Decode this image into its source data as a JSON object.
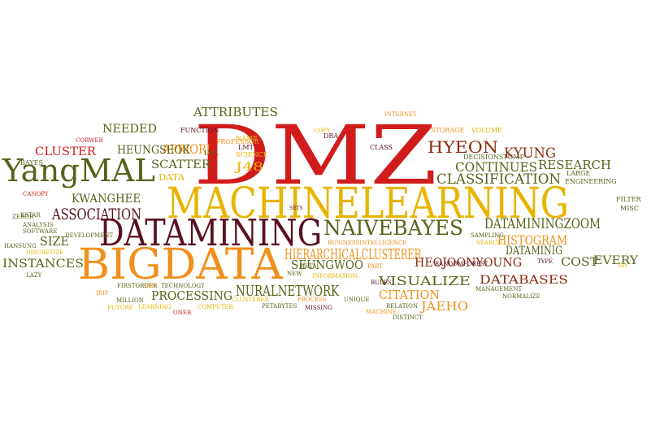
{
  "palette": {
    "red": "#d11c1c",
    "gold": "#e8b400",
    "orange": "#f0901a",
    "olive": "#58621a",
    "dark": "#5a1020",
    "brown": "#8b2a10",
    "tan": "#d2a84a"
  },
  "words": [
    {
      "text": "DMZ",
      "color": "red"
    },
    {
      "text": "MACHINELEARNING",
      "color": "gold"
    },
    {
      "text": "DATAMINING",
      "color": "dark"
    },
    {
      "text": "BIGDATA",
      "color": "orange"
    },
    {
      "text": "YangMAL",
      "color": "olive"
    },
    {
      "text": "NAIVEBAYES",
      "color": "olive"
    },
    {
      "text": "ASSOCIATION",
      "color": "dark"
    },
    {
      "text": "HIERARCHICALCLUSTERER",
      "color": "orange"
    },
    {
      "text": "NURALNETWORK",
      "color": "olive"
    },
    {
      "text": "DATAMININGZOOM",
      "color": "olive"
    },
    {
      "text": "CLASSIFICATION",
      "color": "olive"
    },
    {
      "text": "APRIORI",
      "color": "orange"
    },
    {
      "text": "ATTRIBUTES",
      "color": "olive"
    },
    {
      "text": "NEEDED",
      "color": "olive"
    },
    {
      "text": "CLUSTER",
      "color": "red"
    },
    {
      "text": "HEUNGSEOK",
      "color": "olive"
    },
    {
      "text": "SCATTER",
      "color": "olive"
    },
    {
      "text": "KWANGHEE",
      "color": "olive"
    },
    {
      "text": "SIZE",
      "color": "olive"
    },
    {
      "text": "INSTANCES",
      "color": "olive"
    },
    {
      "text": "HYEON",
      "color": "brown"
    },
    {
      "text": "KYUNG",
      "color": "brown"
    },
    {
      "text": "CONTINUES",
      "color": "olive"
    },
    {
      "text": "RESEARCH",
      "color": "olive"
    },
    {
      "text": "HISTOGRAM",
      "color": "orange"
    },
    {
      "text": "EVERY",
      "color": "olive"
    },
    {
      "text": "DATAMINIG",
      "color": "olive"
    },
    {
      "text": "SEUNGWOO",
      "color": "olive"
    },
    {
      "text": "HEOJOONYOUNG",
      "color": "brown"
    },
    {
      "text": "COST",
      "color": "olive"
    },
    {
      "text": "VISUALIZE",
      "color": "olive"
    },
    {
      "text": "DATABASES",
      "color": "brown"
    },
    {
      "text": "PROCESSING",
      "color": "olive"
    },
    {
      "text": "CITATION",
      "color": "orange"
    },
    {
      "text": "JAEHO",
      "color": "orange"
    },
    {
      "text": "J48",
      "color": "gold"
    },
    {
      "text": "DATA",
      "color": "gold"
    },
    {
      "text": "FUNCTION",
      "color": "dark"
    },
    {
      "text": "PROFESSOR",
      "color": "orange"
    },
    {
      "text": "LWL",
      "color": "olive"
    },
    {
      "text": "LMT",
      "color": "dark"
    },
    {
      "text": "SCIENCE",
      "color": "gold"
    },
    {
      "text": "NAME",
      "color": "gold"
    },
    {
      "text": "DBA",
      "color": "dark"
    },
    {
      "text": "COPY",
      "color": "gold"
    },
    {
      "text": "CLASS",
      "color": "dark"
    },
    {
      "text": "INTERNET",
      "color": "orange"
    },
    {
      "text": "STORAGE",
      "color": "orange"
    },
    {
      "text": "VOLUME",
      "color": "gold"
    },
    {
      "text": "DECISIONSTUMP",
      "color": "olive"
    },
    {
      "text": "COBWEB",
      "color": "red"
    },
    {
      "text": "BAYES",
      "color": "olive"
    },
    {
      "text": "MISC",
      "color": "olive"
    },
    {
      "text": "FILTER",
      "color": "olive"
    },
    {
      "text": "LARGE",
      "color": "olive"
    },
    {
      "text": "ENGINEERING",
      "color": "olive"
    },
    {
      "text": "SETS",
      "color": "dark"
    },
    {
      "text": "CANOPY",
      "color": "red"
    },
    {
      "text": "ZEROR",
      "color": "olive"
    },
    {
      "text": "KSTAR",
      "color": "olive"
    },
    {
      "text": "ANALYSIS",
      "color": "olive"
    },
    {
      "text": "SOFTWARE",
      "color": "olive"
    },
    {
      "text": "DEVELOPMENT",
      "color": "olive"
    },
    {
      "text": "HANSUNG",
      "color": "olive"
    },
    {
      "text": "DISCRETIZE",
      "color": "gold"
    },
    {
      "text": "LAZY",
      "color": "olive"
    },
    {
      "text": "FIRSTORDER",
      "color": "olive"
    },
    {
      "text": "SAN",
      "color": "orange"
    },
    {
      "text": "TECHNOLOGY",
      "color": "olive"
    },
    {
      "text": "JRIP",
      "color": "orange"
    },
    {
      "text": "MILLION",
      "color": "olive"
    },
    {
      "text": "FUTURE",
      "color": "gold"
    },
    {
      "text": "LEARNING",
      "color": "gold"
    },
    {
      "text": "COMPUTER",
      "color": "gold"
    },
    {
      "text": "ONER",
      "color": "red"
    },
    {
      "text": "CLUSTERER",
      "color": "gold"
    },
    {
      "text": "PETABYTES",
      "color": "olive"
    },
    {
      "text": "MISSING",
      "color": "dark"
    },
    {
      "text": "NEW",
      "color": "olive"
    },
    {
      "text": "META",
      "color": "olive"
    },
    {
      "text": "INFORMATION",
      "color": "gold"
    },
    {
      "text": "PART",
      "color": "orange"
    },
    {
      "text": "RULES",
      "color": "dark"
    },
    {
      "text": "UNIQUE",
      "color": "olive"
    },
    {
      "text": "PROCESS",
      "color": "orange"
    },
    {
      "text": "RELATION",
      "color": "olive"
    },
    {
      "text": "MACHINE",
      "color": "orange"
    },
    {
      "text": "DISTINCT",
      "color": "olive"
    },
    {
      "text": "SAMPLING",
      "color": "olive"
    },
    {
      "text": "SEARCH",
      "color": "gold"
    },
    {
      "text": "RANDOMFOREST",
      "color": "dark"
    },
    {
      "text": "BUSINESSINTELLIGENCE",
      "color": "orange"
    },
    {
      "text": "TYPE",
      "color": "dark"
    },
    {
      "text": "MANAGEMENT",
      "color": "olive"
    },
    {
      "text": "NORMALIZE",
      "color": "olive"
    },
    {
      "text": "SAY",
      "color": "gold"
    }
  ]
}
